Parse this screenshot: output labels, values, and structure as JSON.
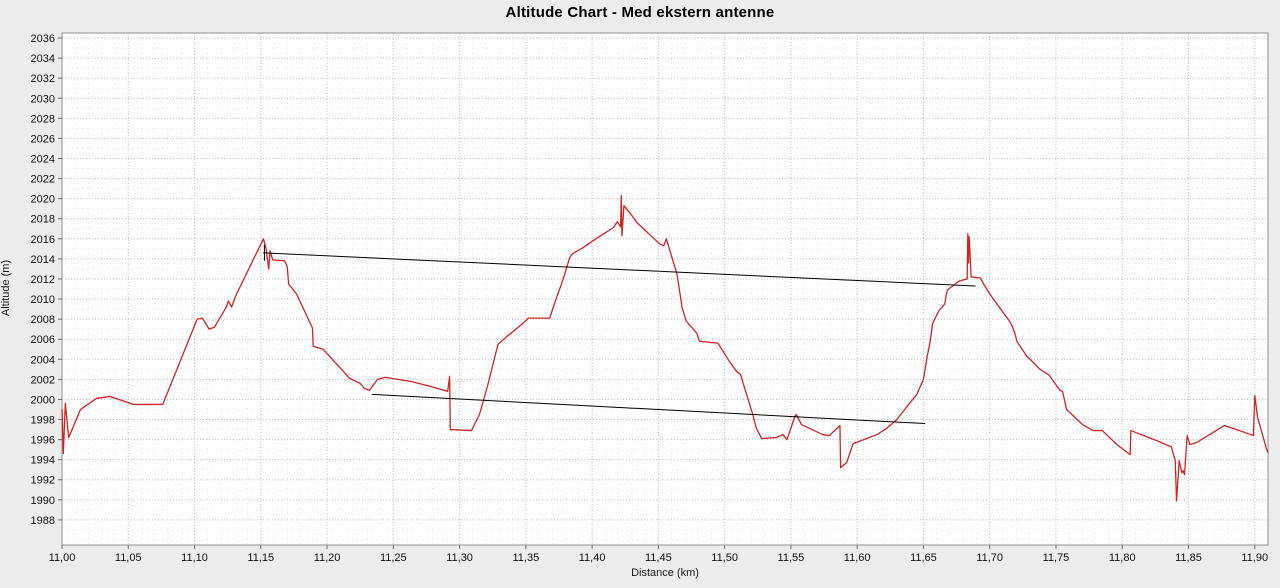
{
  "chart_data": {
    "type": "line",
    "title": "Altitude Chart - Med ekstern antenne",
    "xlabel": "Distance (km)",
    "ylabel": "Altitude (m)",
    "xlim": [
      11.0,
      11.91
    ],
    "ylim": [
      1985.5,
      2036.5
    ],
    "grid": "dotted",
    "legend": "none",
    "colors": {
      "background": "#ececec",
      "plot_background": "#ffffff",
      "plot_border": "#8f8f8f",
      "grid_major": "#c6c6c6",
      "grid_minor": "#e7e7e7",
      "tick_text": "#111111",
      "series_red": "#d42222",
      "annotation_black": "#000000"
    },
    "x_ticks": [
      11.0,
      11.05,
      11.1,
      11.15,
      11.2,
      11.25,
      11.3,
      11.35,
      11.4,
      11.45,
      11.5,
      11.55,
      11.6,
      11.65,
      11.7,
      11.75,
      11.8,
      11.85,
      11.9
    ],
    "x_tick_labels": [
      "11,00",
      "11,05",
      "11,10",
      "11,15",
      "11,20",
      "11,25",
      "11,30",
      "11,35",
      "11,40",
      "11,45",
      "11,50",
      "11,55",
      "11,60",
      "11,65",
      "11,70",
      "11,75",
      "11,80",
      "11,85",
      "11,90"
    ],
    "y_ticks": [
      1988,
      1990,
      1992,
      1994,
      1996,
      1998,
      2000,
      2002,
      2004,
      2006,
      2008,
      2010,
      2012,
      2014,
      2016,
      2018,
      2020,
      2022,
      2024,
      2026,
      2028,
      2030,
      2032,
      2034,
      2036
    ],
    "minor_x_step": 0.01,
    "minor_y_step": 1,
    "series": [
      {
        "name": "altitude-profile",
        "color": "#d42222",
        "width": 1.3,
        "points": [
          [
            11.0,
            1999.0
          ],
          [
            11.001,
            1994.6
          ],
          [
            11.0025,
            1999.6
          ],
          [
            11.005,
            1996.2
          ],
          [
            11.014,
            1999.0
          ],
          [
            11.026,
            2000.1
          ],
          [
            11.036,
            2000.3
          ],
          [
            11.054,
            1999.5
          ],
          [
            11.076,
            1999.5
          ],
          [
            11.102,
            2008.0
          ],
          [
            11.106,
            2008.1
          ],
          [
            11.111,
            2007.0
          ],
          [
            11.115,
            2007.2
          ],
          [
            11.124,
            2009.2
          ],
          [
            11.1255,
            2009.8
          ],
          [
            11.128,
            2009.2
          ],
          [
            11.131,
            2010.3
          ],
          [
            11.152,
            2016.0
          ],
          [
            11.154,
            2015.0
          ],
          [
            11.156,
            2013.0
          ],
          [
            11.157,
            2014.8
          ],
          [
            11.159,
            2013.9
          ],
          [
            11.168,
            2013.8
          ],
          [
            11.17,
            2013.2
          ],
          [
            11.171,
            2011.5
          ],
          [
            11.177,
            2010.5
          ],
          [
            11.189,
            2007.1
          ],
          [
            11.1895,
            2005.3
          ],
          [
            11.197,
            2005.0
          ],
          [
            11.217,
            2002.1
          ],
          [
            11.225,
            2001.6
          ],
          [
            11.228,
            2001.1
          ],
          [
            11.232,
            2000.9
          ],
          [
            11.238,
            2002.0
          ],
          [
            11.244,
            2002.2
          ],
          [
            11.263,
            2001.8
          ],
          [
            11.278,
            2001.3
          ],
          [
            11.291,
            2000.8
          ],
          [
            11.2925,
            2002.3
          ],
          [
            11.293,
            1997.0
          ],
          [
            11.309,
            1996.9
          ],
          [
            11.315,
            1998.5
          ],
          [
            11.321,
            2001.3
          ],
          [
            11.329,
            2005.5
          ],
          [
            11.336,
            2006.3
          ],
          [
            11.348,
            2007.6
          ],
          [
            11.352,
            2008.1
          ],
          [
            11.368,
            2008.1
          ],
          [
            11.373,
            2010.1
          ],
          [
            11.378,
            2011.9
          ],
          [
            11.383,
            2014.1
          ],
          [
            11.385,
            2014.5
          ],
          [
            11.393,
            2015.1
          ],
          [
            11.404,
            2016.1
          ],
          [
            11.416,
            2017.1
          ],
          [
            11.419,
            2017.7
          ],
          [
            11.4215,
            2017.2
          ],
          [
            11.422,
            2020.3
          ],
          [
            11.4225,
            2016.3
          ],
          [
            11.424,
            2019.3
          ],
          [
            11.429,
            2018.5
          ],
          [
            11.434,
            2017.6
          ],
          [
            11.438,
            2017.1
          ],
          [
            11.446,
            2016.1
          ],
          [
            11.451,
            2015.5
          ],
          [
            11.454,
            2015.3
          ],
          [
            11.456,
            2016.0
          ],
          [
            11.464,
            2012.5
          ],
          [
            11.468,
            2009.1
          ],
          [
            11.471,
            2007.8
          ],
          [
            11.479,
            2006.6
          ],
          [
            11.481,
            2005.8
          ],
          [
            11.495,
            2005.6
          ],
          [
            11.504,
            2003.7
          ],
          [
            11.509,
            2002.8
          ],
          [
            11.512,
            2002.5
          ],
          [
            11.514,
            2001.6
          ],
          [
            11.521,
            1998.6
          ],
          [
            11.524,
            1997.1
          ],
          [
            11.528,
            1996.1
          ],
          [
            11.539,
            1996.2
          ],
          [
            11.544,
            1996.5
          ],
          [
            11.547,
            1996.0
          ],
          [
            11.553,
            1998.3
          ],
          [
            11.554,
            1998.5
          ],
          [
            11.558,
            1997.5
          ],
          [
            11.574,
            1996.5
          ],
          [
            11.579,
            1996.4
          ],
          [
            11.587,
            1997.4
          ],
          [
            11.5875,
            1993.2
          ],
          [
            11.592,
            1993.7
          ],
          [
            11.597,
            1995.6
          ],
          [
            11.607,
            1996.1
          ],
          [
            11.615,
            1996.5
          ],
          [
            11.622,
            1997.1
          ],
          [
            11.63,
            1998.0
          ],
          [
            11.637,
            1999.2
          ],
          [
            11.645,
            2000.5
          ],
          [
            11.65,
            2002.0
          ],
          [
            11.653,
            2004.4
          ],
          [
            11.655,
            2005.7
          ],
          [
            11.657,
            2007.6
          ],
          [
            11.662,
            2008.9
          ],
          [
            11.666,
            2009.5
          ],
          [
            11.668,
            2010.9
          ],
          [
            11.677,
            2011.8
          ],
          [
            11.683,
            2012.0
          ],
          [
            11.6835,
            2016.5
          ],
          [
            11.684,
            2013.6
          ],
          [
            11.6845,
            2016.2
          ],
          [
            11.686,
            2012.2
          ],
          [
            11.693,
            2012.1
          ],
          [
            11.695,
            2011.6
          ],
          [
            11.7,
            2010.5
          ],
          [
            11.705,
            2009.6
          ],
          [
            11.711,
            2008.5
          ],
          [
            11.715,
            2007.8
          ],
          [
            11.717,
            2007.3
          ],
          [
            11.719,
            2006.6
          ],
          [
            11.7205,
            2005.8
          ],
          [
            11.728,
            2004.3
          ],
          [
            11.732,
            2003.8
          ],
          [
            11.738,
            2003.0
          ],
          [
            11.745,
            2002.4
          ],
          [
            11.753,
            2000.9
          ],
          [
            11.755,
            2000.8
          ],
          [
            11.758,
            1999.0
          ],
          [
            11.77,
            1997.5
          ],
          [
            11.778,
            1996.9
          ],
          [
            11.785,
            1996.9
          ],
          [
            11.796,
            1995.5
          ],
          [
            11.806,
            1994.5
          ],
          [
            11.8065,
            1996.9
          ],
          [
            11.826,
            1995.9
          ],
          [
            11.833,
            1995.5
          ],
          [
            11.837,
            1995.3
          ],
          [
            11.84,
            1993.9
          ],
          [
            11.841,
            1989.9
          ],
          [
            11.843,
            1993.9
          ],
          [
            11.845,
            1992.7
          ],
          [
            11.846,
            1992.9
          ],
          [
            11.847,
            1992.5
          ],
          [
            11.849,
            1996.4
          ],
          [
            11.851,
            1995.5
          ],
          [
            11.856,
            1995.7
          ],
          [
            11.866,
            1996.5
          ],
          [
            11.877,
            1997.4
          ],
          [
            11.886,
            1997.0
          ],
          [
            11.899,
            1996.4
          ],
          [
            11.9,
            2000.4
          ],
          [
            11.902,
            1998.3
          ],
          [
            11.909,
            1995.0
          ],
          [
            11.91,
            1994.7
          ]
        ]
      },
      {
        "name": "annotation-line-upper",
        "color": "#000000",
        "width": 1,
        "start_tick": true,
        "points": [
          [
            11.152,
            2014.6
          ],
          [
            11.689,
            2011.3
          ]
        ]
      },
      {
        "name": "annotation-line-lower",
        "color": "#000000",
        "width": 1,
        "start_tick": false,
        "points": [
          [
            11.234,
            2000.5
          ],
          [
            11.651,
            1997.6
          ]
        ]
      }
    ]
  }
}
